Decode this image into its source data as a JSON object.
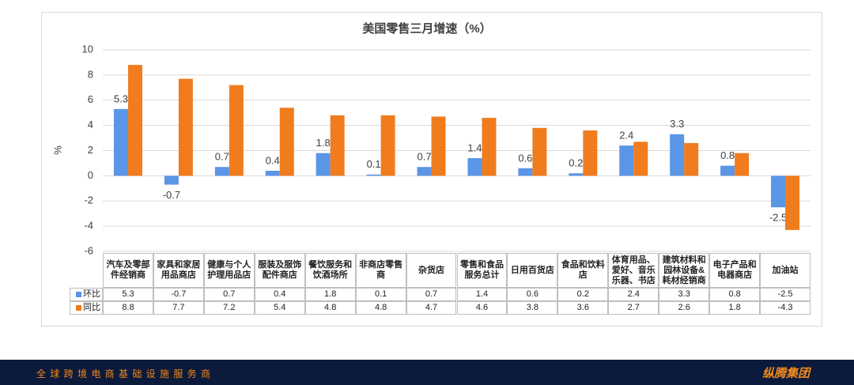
{
  "chart_data": {
    "type": "bar",
    "title": "美国零售三月增速（%）",
    "y_label": "%",
    "categories": [
      "汽车及零部件经销商",
      "家具和家居用品商店",
      "健康与个人护理用品店",
      "服装及服饰配件商店",
      "餐饮服务和饮酒场所",
      "非商店零售商",
      "杂货店",
      "零售和食品服务总计",
      "日用百货店",
      "食品和饮料店",
      "体育用品、爱好、音乐乐器、书店",
      "建筑材料和园林设备&耗材经销商",
      "电子产品和电器商店",
      "加油站"
    ],
    "series": [
      {
        "name": "环比",
        "color": "#5b95e6",
        "values": [
          5.3,
          -0.7,
          0.7,
          0.4,
          1.8,
          0.1,
          0.7,
          1.4,
          0.6,
          0.2,
          2.4,
          3.3,
          0.8,
          -2.5
        ]
      },
      {
        "name": "同比",
        "color": "#f07c1e",
        "values": [
          8.8,
          7.7,
          7.2,
          5.4,
          4.8,
          4.8,
          4.7,
          4.6,
          3.8,
          3.6,
          2.7,
          2.6,
          1.8,
          -4.3
        ]
      }
    ],
    "ylim": [
      -6,
      10
    ],
    "yticks": [
      -6,
      -4,
      -2,
      0,
      2,
      4,
      6,
      8,
      10
    ],
    "grid": true,
    "data_labels_series": 0
  },
  "footer": {
    "tagline": "全 球 跨 境 电 商 基 础 设 施 服 务 商",
    "logo": "纵腾集团"
  }
}
